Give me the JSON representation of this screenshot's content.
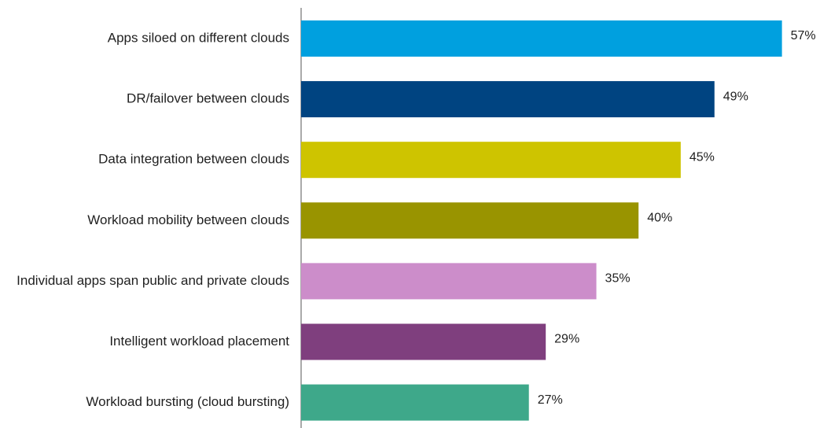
{
  "chart_data": {
    "type": "bar",
    "orientation": "horizontal",
    "title": "",
    "xlabel": "",
    "ylabel": "",
    "xlim": [
      0,
      100
    ],
    "grid": false,
    "legend": "none",
    "value_suffix": "%",
    "categories": [
      "Apps siloed on different clouds",
      "DR/failover between clouds",
      "Data integration between clouds",
      "Workload mobility between clouds",
      "Individual apps span public and private clouds",
      "Intelligent workload placement",
      "Workload bursting (cloud bursting)"
    ],
    "values": [
      57,
      49,
      45,
      40,
      35,
      29,
      27
    ],
    "value_labels": [
      "57%",
      "49%",
      "45%",
      "40%",
      "35%",
      "29%",
      "27%"
    ],
    "colors": [
      "#00a0df",
      "#004481",
      "#cec400",
      "#999400",
      "#cc8dca",
      "#7f3f7e",
      "#3ea88a"
    ],
    "axis_color": "#555555"
  }
}
